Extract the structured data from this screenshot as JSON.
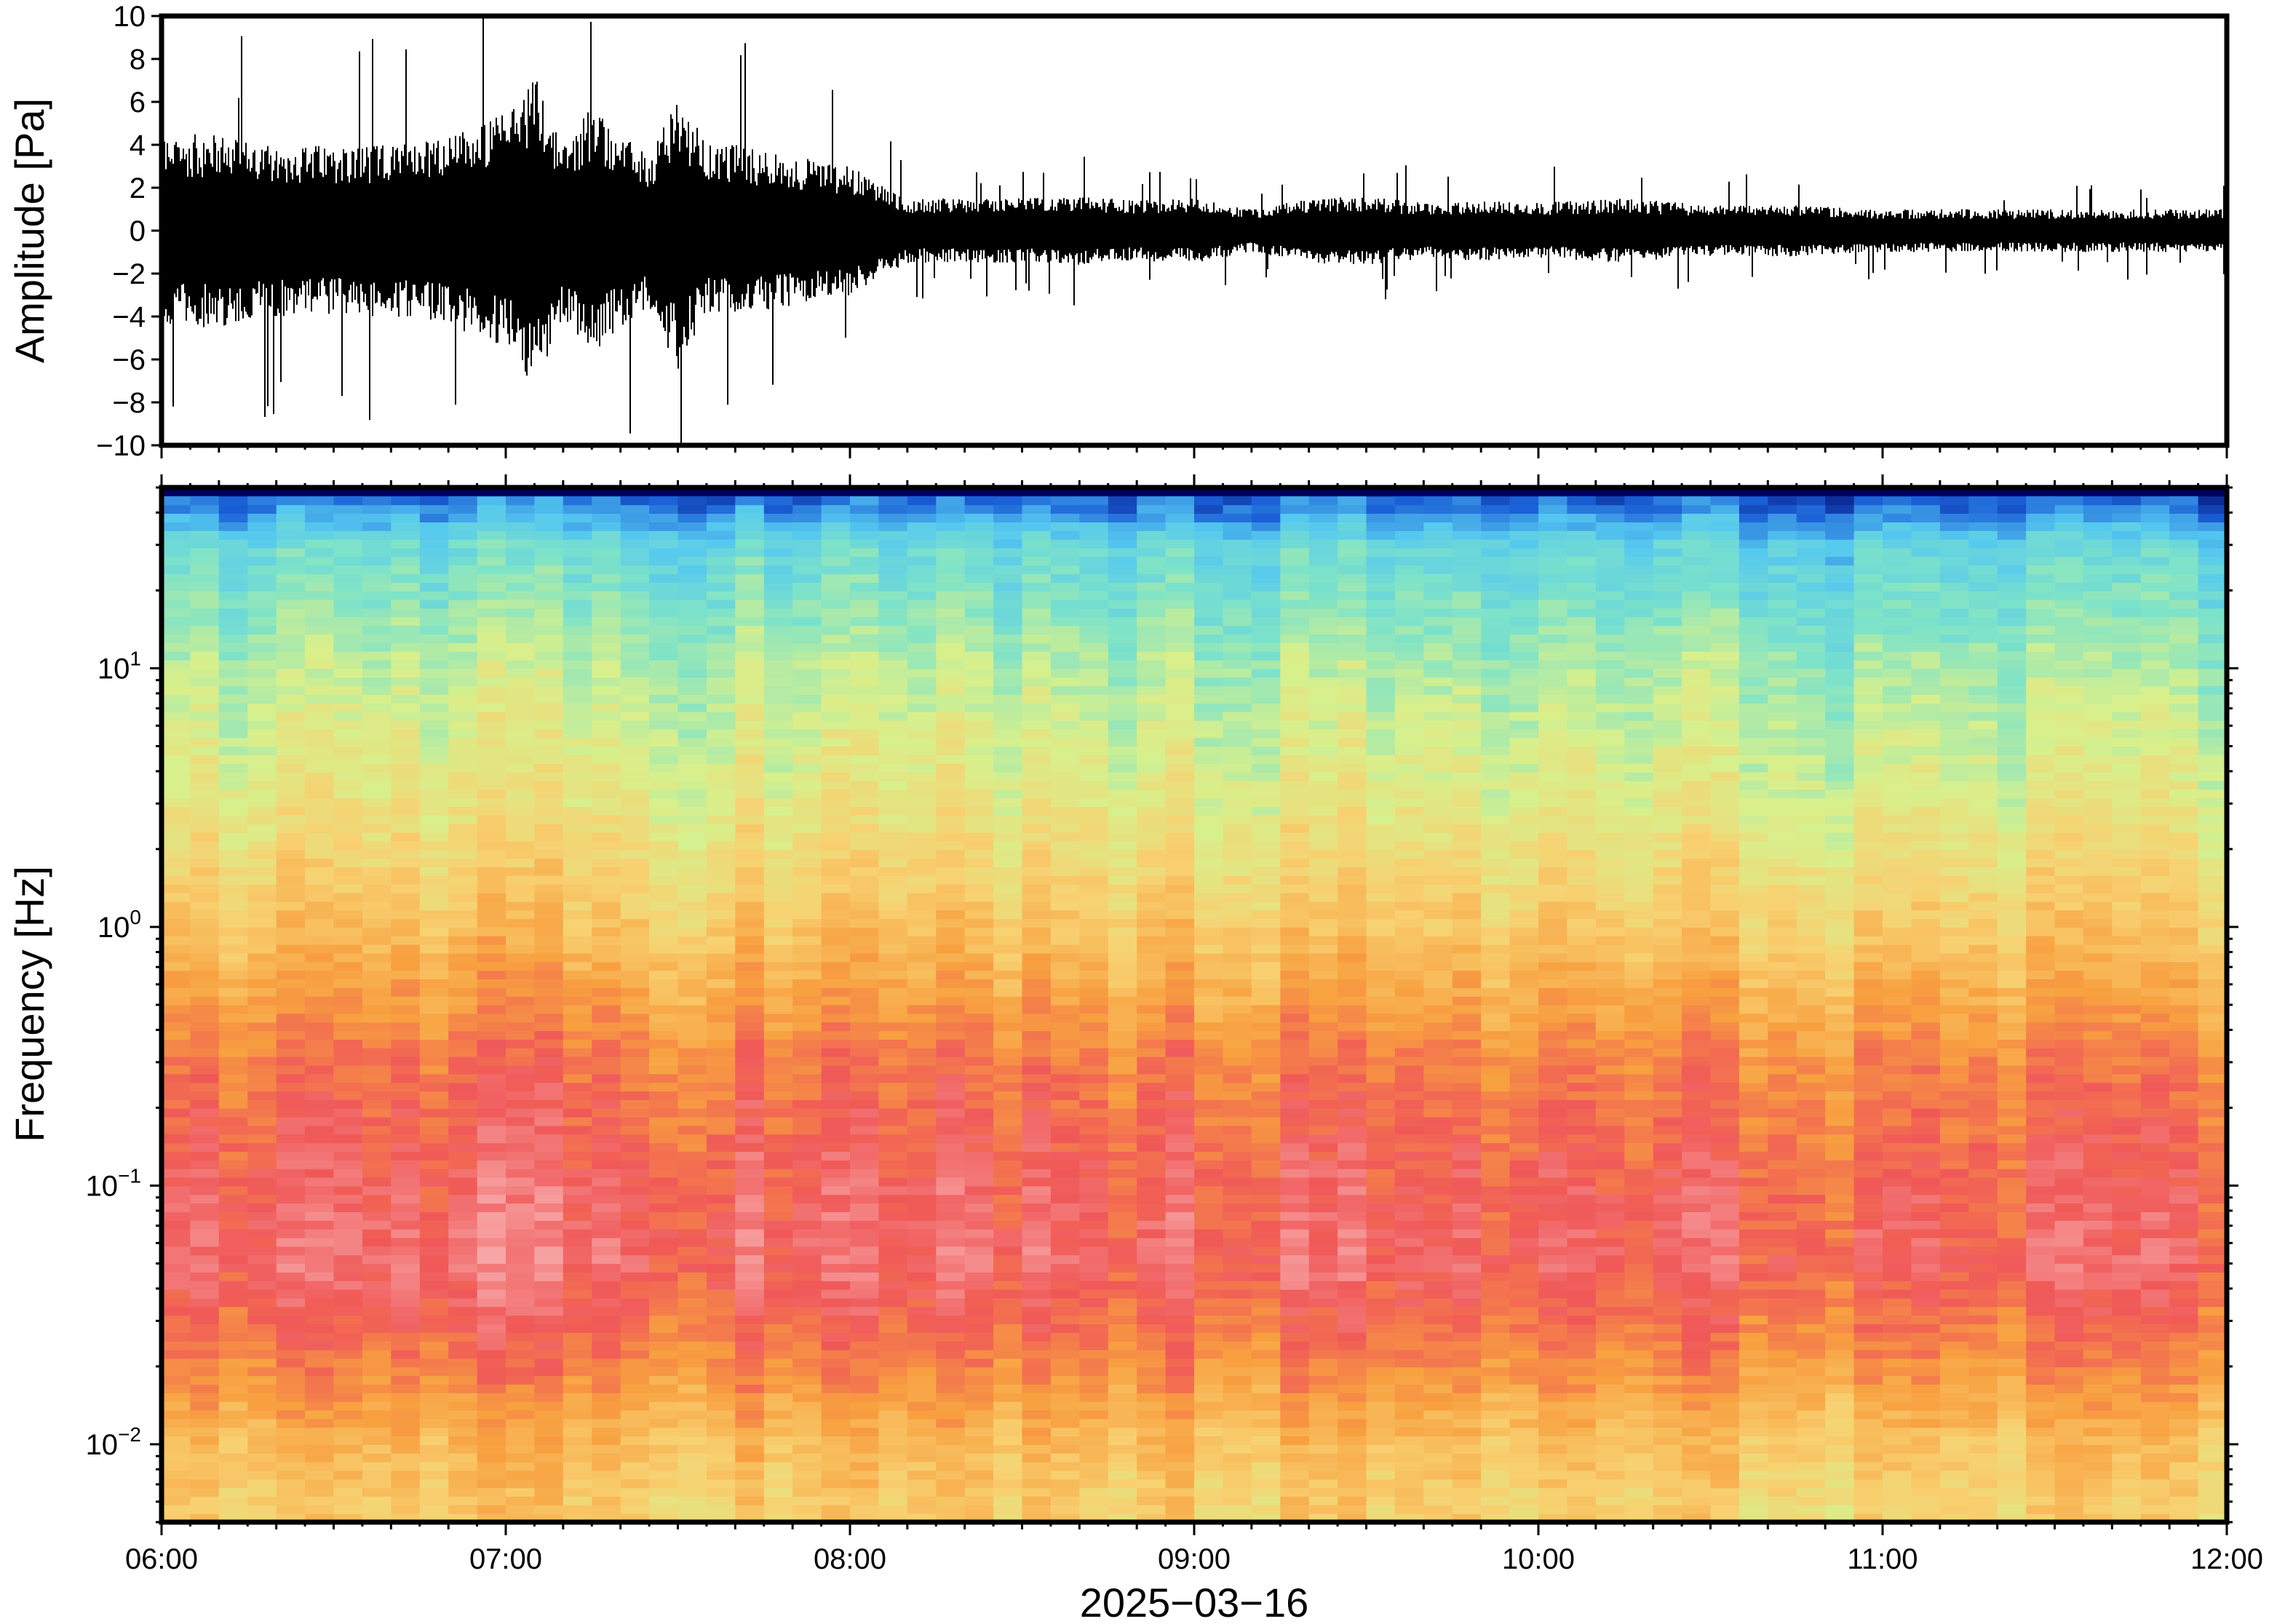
{
  "chart_data": [
    {
      "type": "line",
      "ylabel": "Amplitude [Pa]",
      "ylim": [
        -10,
        10
      ],
      "yticks": [
        "10",
        "8",
        "6",
        "4",
        "2",
        "0",
        "−2",
        "−4",
        "−6",
        "−8",
        "−10"
      ],
      "x": {
        "start": "2025-03-16 06:00",
        "end": "2025-03-16 12:00"
      },
      "grid": false,
      "envelope": {
        "times": [
          "06:00",
          "06:10",
          "06:20",
          "06:30",
          "06:40",
          "06:50",
          "07:00",
          "07:05",
          "07:10",
          "07:15",
          "07:20",
          "07:25",
          "07:30",
          "07:35",
          "07:40",
          "07:50",
          "08:00",
          "08:10",
          "08:20",
          "08:30",
          "08:40",
          "08:50",
          "09:00",
          "09:10",
          "09:20",
          "09:30",
          "09:40",
          "09:50",
          "10:00",
          "10:15",
          "10:30",
          "10:45",
          "11:00",
          "11:15",
          "11:30",
          "11:45",
          "12:00"
        ],
        "half_width_pa": [
          4.5,
          4.5,
          4.0,
          4.0,
          4.0,
          4.5,
          5.5,
          7.5,
          4.0,
          6.0,
          4.5,
          3.5,
          6.5,
          4.0,
          4.0,
          3.5,
          3.0,
          1.5,
          1.5,
          1.5,
          1.6,
          1.4,
          1.5,
          1.0,
          1.5,
          1.6,
          1.3,
          1.4,
          1.3,
          1.5,
          1.2,
          1.2,
          1.0,
          1.0,
          1.0,
          1.0,
          1.0
        ]
      }
    },
    {
      "type": "heatmap",
      "xlabel": "2025−03−16",
      "ylabel": "Frequency [Hz]",
      "xticks": [
        "06:00",
        "07:00",
        "08:00",
        "09:00",
        "10:00",
        "11:00",
        "12:00"
      ],
      "yscale": "log",
      "ylim": [
        0.005,
        50
      ],
      "yticks": [
        {
          "value": 0.01,
          "base": "10",
          "exp": "−2"
        },
        {
          "value": 0.1,
          "base": "10",
          "exp": "−1"
        },
        {
          "value": 1,
          "base": "10",
          "exp": "0"
        },
        {
          "value": 10,
          "base": "10",
          "exp": "1"
        }
      ],
      "colormap": [
        "#000060",
        "#1a5fd6",
        "#55c8f0",
        "#7ee3c8",
        "#d8f08c",
        "#f8d070",
        "#f8a040",
        "#f05858",
        "#f8a8a8",
        "#fce8e8"
      ],
      "frequency_profile_hz": [
        0.006,
        0.01,
        0.02,
        0.05,
        0.1,
        0.3,
        1,
        3,
        10,
        30,
        50
      ],
      "level_profile": [
        0.58,
        0.62,
        0.72,
        0.82,
        0.8,
        0.74,
        0.6,
        0.5,
        0.42,
        0.3,
        0.1
      ]
    }
  ]
}
